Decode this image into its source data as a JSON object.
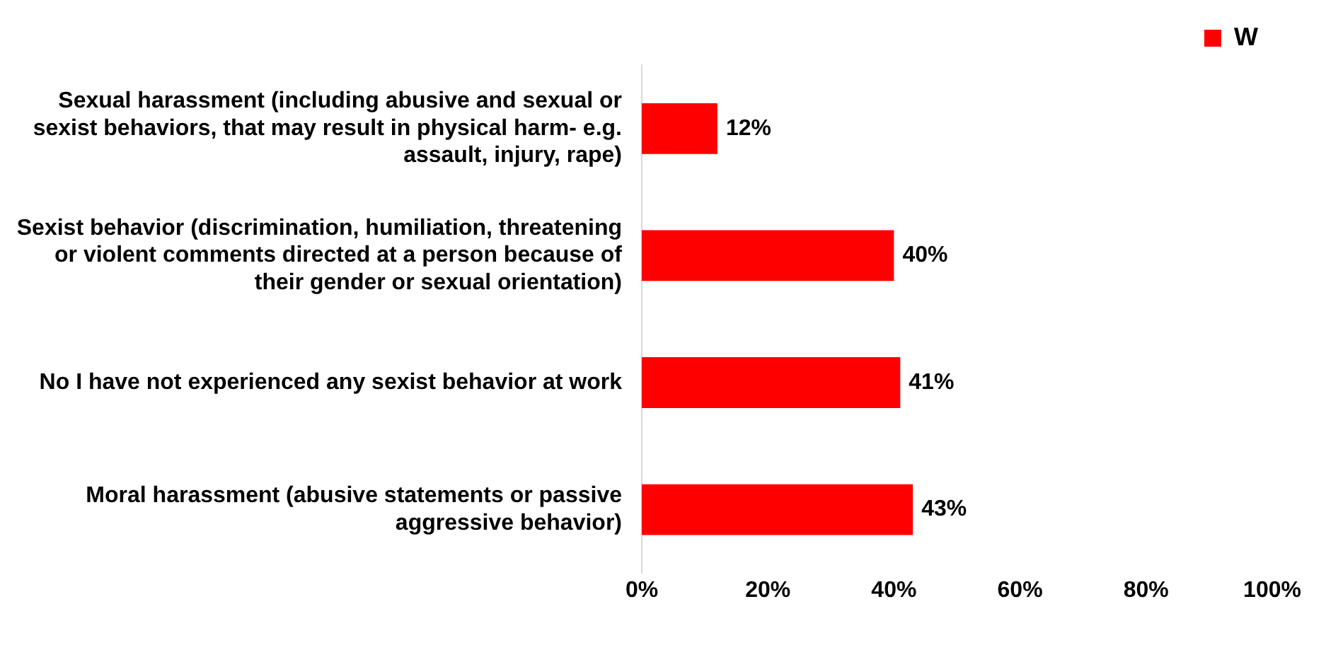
{
  "chart_data": {
    "type": "bar",
    "orientation": "horizontal",
    "categories": [
      "Sexual harassment (including abusive and sexual or sexist behaviors, that may result in physical harm- e.g. assault, injury, rape)",
      "Sexist behavior (discrimination, humiliation, threatening or violent comments directed at a person because of their gender or sexual orientation)",
      "No I have not experienced any sexist behavior at work",
      "Moral harassment (abusive statements or passive aggressive behavior)"
    ],
    "series": [
      {
        "name": "W",
        "color": "#ff0000",
        "values": [
          12,
          40,
          41,
          43
        ],
        "value_labels": [
          "12%",
          "40%",
          "41%",
          "43%"
        ]
      }
    ],
    "xlim": [
      0,
      100
    ],
    "xticks": [
      {
        "value": 0,
        "label": "0%"
      },
      {
        "value": 20,
        "label": "20%"
      },
      {
        "value": 40,
        "label": "40%"
      },
      {
        "value": 60,
        "label": "60%"
      },
      {
        "value": 80,
        "label": "80%"
      },
      {
        "value": 100,
        "label": "100%"
      }
    ],
    "grid": false,
    "legend": "top right"
  }
}
